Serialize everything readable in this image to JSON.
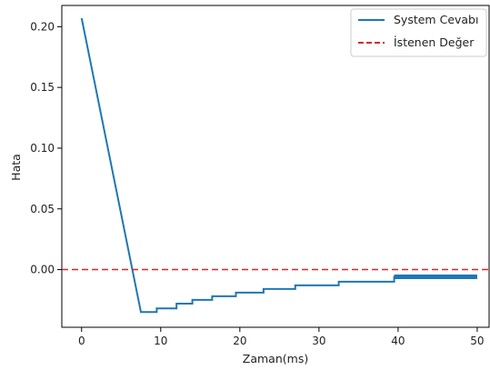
{
  "chart_data": {
    "type": "line",
    "xlabel": "Zaman(ms)",
    "ylabel": "Hata",
    "xlim": [
      -2.5,
      51.5
    ],
    "ylim": [
      -0.0475,
      0.2175
    ],
    "xticks": [
      0,
      10,
      20,
      30,
      40,
      50
    ],
    "xtick_labels": [
      "0",
      "10",
      "20",
      "30",
      "40",
      "50"
    ],
    "yticks": [
      0.0,
      0.05,
      0.1,
      0.15,
      0.2
    ],
    "ytick_labels": [
      "0.00",
      "0.05",
      "0.10",
      "0.15",
      "0.20"
    ],
    "grid": false,
    "legend_position": "top-right",
    "series": [
      {
        "name": "System Cevabı",
        "color": "#1f77b4",
        "style": "solid",
        "x": [
          0,
          7.5,
          7.5,
          9.5,
          9.5,
          12,
          12,
          14,
          14,
          16.5,
          16.5,
          19.5,
          19.5,
          23,
          23,
          27,
          27,
          32.5,
          32.5,
          39.5,
          39.5,
          50
        ],
        "y": [
          0.207,
          -0.035,
          -0.035,
          -0.035,
          -0.032,
          -0.032,
          -0.028,
          -0.028,
          -0.025,
          -0.025,
          -0.022,
          -0.022,
          -0.019,
          -0.019,
          -0.016,
          -0.016,
          -0.013,
          -0.013,
          -0.01,
          -0.01,
          -0.006,
          -0.006
        ]
      },
      {
        "name": "İstenen Değer",
        "color": "#d62728",
        "style": "dashed",
        "x": [
          -2.5,
          51.5
        ],
        "y": [
          0.0,
          0.0
        ]
      }
    ]
  }
}
